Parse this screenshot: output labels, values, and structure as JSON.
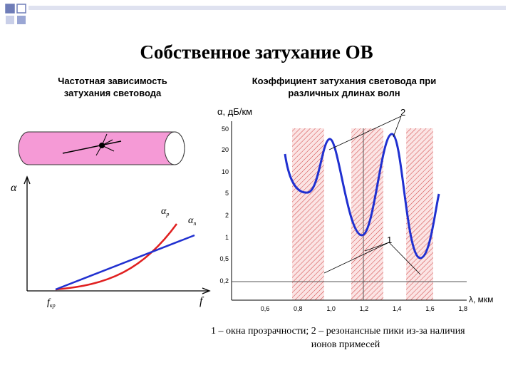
{
  "header": {
    "title": "Собственное затухание ОВ"
  },
  "left_panel": {
    "title": [
      "Частотная зависимость",
      "затухания световода"
    ],
    "axis_y": "α",
    "axis_x": "f",
    "f_cutoff": {
      "main": "f",
      "sub": "кр"
    },
    "curve_labels": [
      {
        "main": "α",
        "sub": "р"
      },
      {
        "main": "α",
        "sub": "п"
      }
    ]
  },
  "right_panel": {
    "title": [
      "Коэффициент затухания световода при",
      "различных длинах волн"
    ],
    "y_axis_label": "α, дБ/км",
    "x_axis_label": "λ, мкм",
    "y_tick_labels": [
      "50",
      "20",
      "10",
      "5",
      "2",
      "1",
      "0,5",
      "0,2"
    ],
    "x_tick_labels": [
      "0,6",
      "0,8",
      "1,0",
      "1,2",
      "1,4",
      "1,6",
      "1,8"
    ],
    "callouts": [
      "2",
      "1"
    ]
  },
  "caption": [
    "1 – окна прозрачности; 2 – резонансные пики из-за наличия",
    "ионов примесей"
  ]
}
